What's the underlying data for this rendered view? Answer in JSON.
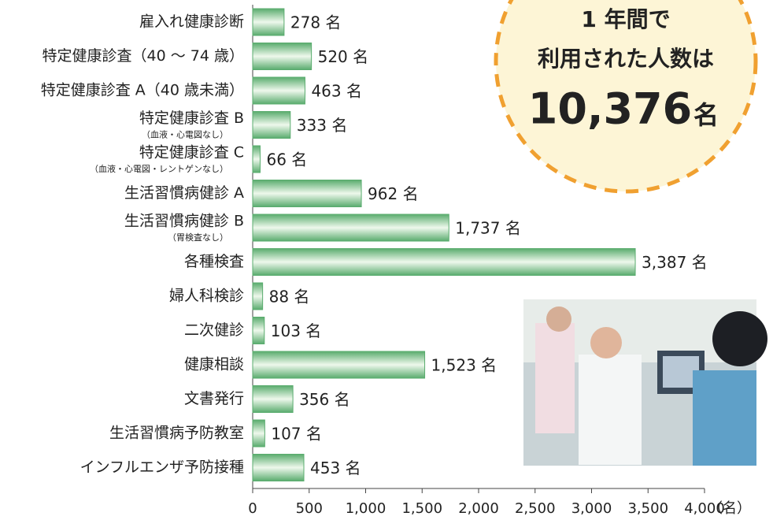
{
  "chart_data": {
    "type": "hbar",
    "categories": [
      "雇入れ健康診断",
      "特定健康診査（40 ～ 74 歳）",
      "特定健康診査 A（40 歳未満）",
      "特定健康診査 B",
      "特定健康診査 C",
      "生活習慣病健診 A",
      "生活習慣病健診 B",
      "各種検査",
      "婦人科検診",
      "二次健診",
      "健康相談",
      "文書発行",
      "生活習慣病予防教室",
      "インフルエンザ予防接種"
    ],
    "category_notes": [
      null,
      null,
      null,
      "（血液・心電図なし）",
      "（血液・心電図・レントゲンなし）",
      null,
      "（胃検査なし）",
      null,
      null,
      null,
      null,
      null,
      null,
      null
    ],
    "values": [
      278,
      520,
      463,
      333,
      66,
      962,
      1737,
      3387,
      88,
      103,
      1523,
      356,
      107,
      453
    ],
    "value_labels": [
      "278 名",
      "520 名",
      "463 名",
      "333 名",
      "66 名",
      "962 名",
      "1,737 名",
      "3,387 名",
      "88 名",
      "103 名",
      "1,523 名",
      "356 名",
      "107 名",
      "453 名"
    ],
    "color": "#5aac6e",
    "xlim": [
      0,
      4000
    ],
    "xticks": [
      0,
      500,
      {
        "value": 1000,
        "label": "1,000"
      },
      {
        "value": 1500,
        "label": "1,500"
      },
      {
        "value": 2000,
        "label": "2,000"
      },
      {
        "value": 2500,
        "label": "2,500"
      },
      {
        "value": 3000,
        "label": "3,000"
      },
      {
        "value": 3500,
        "label": "3,500"
      },
      {
        "value": 4000,
        "label": "4,000"
      }
    ],
    "x_unit": "（名）",
    "callout": {
      "lines": [
        "1 年間で",
        "利用された人数は"
      ],
      "total": {
        "value": 10376,
        "label": "10,376"
      },
      "unit": "名",
      "color": "#f0a030"
    }
  }
}
